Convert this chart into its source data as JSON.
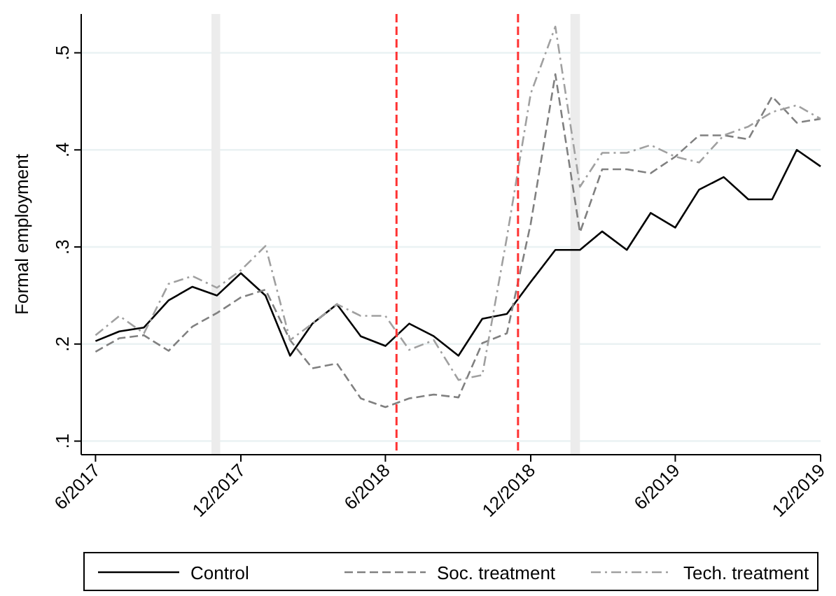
{
  "chart_data": {
    "type": "line",
    "ylabel": "Formal employment",
    "x": [
      "2017-06",
      "2017-07",
      "2017-08",
      "2017-09",
      "2017-10",
      "2017-11",
      "2017-12",
      "2018-01",
      "2018-02",
      "2018-03",
      "2018-04",
      "2018-05",
      "2018-06",
      "2018-07",
      "2018-08",
      "2018-09",
      "2018-10",
      "2018-11",
      "2018-12",
      "2019-01",
      "2019-02",
      "2019-03",
      "2019-04",
      "2019-05",
      "2019-06",
      "2019-07",
      "2019-08",
      "2019-09",
      "2019-10",
      "2019-11",
      "2019-12"
    ],
    "series": [
      {
        "name": "Control",
        "color": "#000000",
        "line_style": "solid",
        "values": [
          0.203,
          0.213,
          0.217,
          0.245,
          0.259,
          0.25,
          0.273,
          0.25,
          0.188,
          0.221,
          0.241,
          0.208,
          0.198,
          0.221,
          0.208,
          0.188,
          0.226,
          0.231,
          0.264,
          0.297,
          0.297,
          0.316,
          0.297,
          0.335,
          0.32,
          0.359,
          0.372,
          0.349,
          0.349,
          0.4,
          0.383
        ]
      },
      {
        "name": "Soc. treatment",
        "color": "#808080",
        "line_style": "dashed",
        "values": [
          0.192,
          0.206,
          0.209,
          0.193,
          0.218,
          0.232,
          0.248,
          0.256,
          0.204,
          0.175,
          0.18,
          0.144,
          0.135,
          0.144,
          0.148,
          0.145,
          0.201,
          0.211,
          0.324,
          0.478,
          0.315,
          0.38,
          0.38,
          0.376,
          0.393,
          0.415,
          0.415,
          0.411,
          0.455,
          0.428,
          0.432
        ]
      },
      {
        "name": "Tech. treatment",
        "color": "#a0a0a0",
        "line_style": "dashdot",
        "values": [
          0.209,
          0.229,
          0.211,
          0.262,
          0.27,
          0.258,
          0.276,
          0.301,
          0.204,
          0.221,
          0.241,
          0.229,
          0.229,
          0.194,
          0.204,
          0.163,
          0.168,
          0.31,
          0.458,
          0.527,
          0.362,
          0.397,
          0.397,
          0.405,
          0.393,
          0.387,
          0.415,
          0.424,
          0.439,
          0.446,
          0.432
        ]
      }
    ],
    "xlim": [
      "2017-05-14",
      "2019-12-01"
    ],
    "xticks": [
      {
        "value": "2017-06",
        "label": "6/2017"
      },
      {
        "value": "2017-12",
        "label": "12/2017"
      },
      {
        "value": "2018-06",
        "label": "6/2018"
      },
      {
        "value": "2018-12",
        "label": "12/2018"
      },
      {
        "value": "2019-06",
        "label": "6/2019"
      },
      {
        "value": "2019-12",
        "label": "12/2019"
      }
    ],
    "ylim": [
      0.086,
      0.54
    ],
    "yticks": [
      {
        "value": 0.1,
        "label": ".1"
      },
      {
        "value": 0.2,
        "label": ".2"
      },
      {
        "value": 0.3,
        "label": ".3"
      },
      {
        "value": 0.4,
        "label": ".4"
      },
      {
        "value": 0.5,
        "label": ".5"
      }
    ],
    "ref_lines": [
      {
        "axis": "x",
        "value": "2018-06-15",
        "color": "#ff3333",
        "line_style": "dashed"
      },
      {
        "axis": "x",
        "value": "2018-11-15",
        "color": "#ff3333",
        "line_style": "dashed"
      }
    ],
    "bands": [
      {
        "axis": "x",
        "from": "2017-10-25",
        "to": "2017-11-05",
        "color": "#ececec"
      },
      {
        "axis": "x",
        "from": "2019-01-20",
        "to": "2019-02-01",
        "color": "#ececec"
      }
    ],
    "grid": "y",
    "legend": "bottom",
    "marker": "none"
  }
}
